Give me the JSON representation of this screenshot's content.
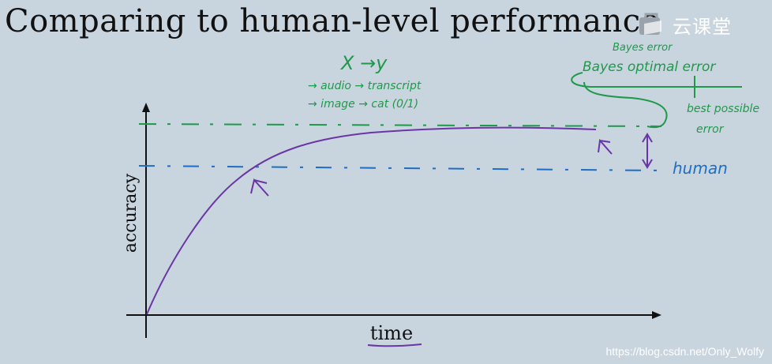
{
  "slide": {
    "title": "Comparing to human-level performance",
    "logo_text": "云课堂",
    "watermark": "https://blog.csdn.net/Only_Wolfy"
  },
  "diagram": {
    "axes": {
      "ylabel": "accuracy",
      "xlabel": "time"
    },
    "annotations": {
      "x_to_y": "X →y",
      "example1": "→ audio → transcript",
      "example2": "→ image → cat (0/1)",
      "bayes_error_small": "Bayes error",
      "bayes_optimal_error": "Bayes optimal error",
      "best_possible_1": "best possible",
      "best_possible_2": "error",
      "human": "human"
    },
    "colors": {
      "green": "#1f9a4a",
      "blue": "#1e6fc4",
      "purple": "#6a35a6",
      "axis": "#111111"
    }
  }
}
